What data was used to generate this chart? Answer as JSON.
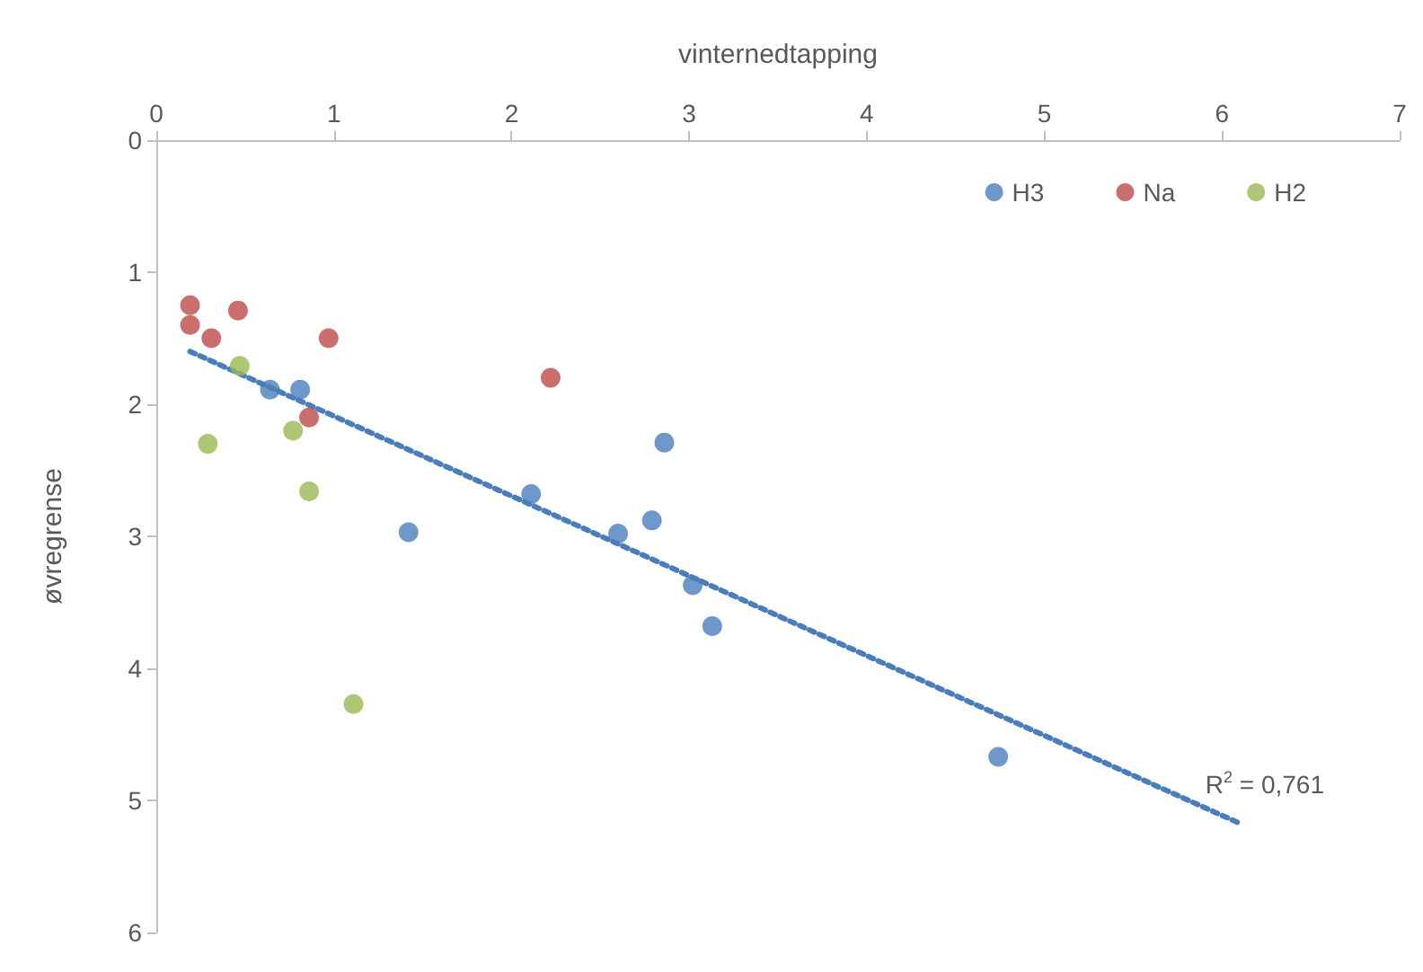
{
  "chart_data": {
    "type": "scatter",
    "xlabel": "vinternedtapping",
    "ylabel": "øvregrense",
    "xlim": [
      0,
      7
    ],
    "xticks": [
      0,
      1,
      2,
      3,
      4,
      5,
      6,
      7
    ],
    "ylim": [
      6,
      0
    ],
    "yticks": [
      0,
      1,
      2,
      3,
      4,
      5,
      6
    ],
    "grid": false,
    "legend": "top right",
    "marker": "circle",
    "annotations": [
      "R$^{2}$ = 0,761"
    ],
    "series": [
      {
        "name": "H3",
        "color": "#4a7ebb",
        "x": [
          0.64,
          0.81,
          1.42,
          2.11,
          2.6,
          2.79,
          2.86,
          3.02,
          3.13,
          4.74
        ],
        "values": [
          1.89,
          1.89,
          2.97,
          2.68,
          2.98,
          2.88,
          2.29,
          3.37,
          3.68,
          4.67
        ]
      },
      {
        "name": "Na",
        "color": "#be4b48",
        "x": [
          0.19,
          0.19,
          0.31,
          0.46,
          0.97,
          0.86,
          2.22
        ],
        "values": [
          1.25,
          1.4,
          1.5,
          1.29,
          1.5,
          2.1,
          1.8
        ]
      },
      {
        "name": "H2",
        "color": "#98b954",
        "x": [
          0.47,
          0.29,
          0.77,
          0.86,
          1.11
        ],
        "values": [
          1.71,
          2.3,
          2.2,
          2.66,
          4.27
        ]
      },
      {
        "type": "line",
        "color": "#4a7ebb",
        "line_style": "dotted",
        "marker": "none",
        "x": [
          0.19,
          6.11
        ],
        "values": [
          1.6,
          5.18
        ]
      }
    ]
  }
}
